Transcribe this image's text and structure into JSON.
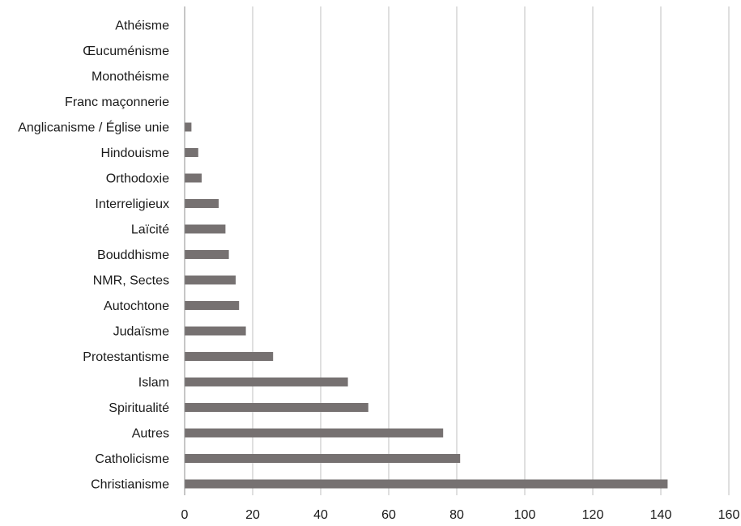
{
  "chart_data": {
    "type": "bar",
    "orientation": "horizontal",
    "title": "",
    "xlabel": "",
    "ylabel": "",
    "categories": [
      "Christianisme",
      "Catholicisme",
      "Autres",
      "Spiritualité",
      "Islam",
      "Protestantisme",
      "Judaïsme",
      "Autochtone",
      "NMR, Sectes",
      "Bouddhisme",
      "Laïcité",
      "Interreligieux",
      "Orthodoxie",
      "Hindouisme",
      "Anglicanisme / Église unie",
      "Franc maçonnerie",
      "Monothéisme",
      "Œucuménisme",
      "Athéisme"
    ],
    "values": [
      142,
      81,
      76,
      54,
      48,
      26,
      18,
      16,
      15,
      13,
      12,
      10,
      5,
      4,
      2,
      0,
      0,
      0,
      0
    ],
    "xlim": [
      0,
      160
    ],
    "xticks": [
      0,
      20,
      40,
      60,
      80,
      100,
      120,
      140,
      160
    ],
    "grid": "vertical",
    "legend": "none",
    "bar_color": "#767171",
    "grid_color": "#bfbfbf"
  }
}
